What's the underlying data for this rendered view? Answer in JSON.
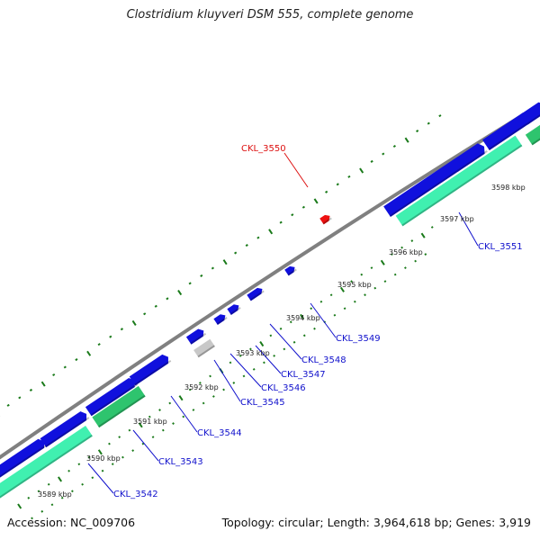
{
  "title": "Clostridium kluyveri DSM 555, complete genome",
  "footer": {
    "accession": "Accession: NC_009706",
    "summary": "Topology: circular; Length: 3,964,618 bp; Genes: 3,919"
  },
  "colors": {
    "backbone": "#808080",
    "forward_cds": "#1010dd",
    "rna": "#2ec46e",
    "special_gene": "#ee1111",
    "pseudo": "#c8c8c8",
    "label_blue": "#1111cc",
    "label_red": "#dd1111",
    "tick_green": "#1a7a1a"
  },
  "scale_labels": [
    "3589 kbp",
    "3590 kbp",
    "3591 kbp",
    "3592 kbp",
    "3593 kbp",
    "3594 kbp",
    "3595 kbp",
    "3596 kbp",
    "3597 kbp",
    "3598 kbp"
  ],
  "gene_labels": [
    "CKL_3542",
    "CKL_3543",
    "CKL_3544",
    "CKL_3545",
    "CKL_3546",
    "CKL_3547",
    "CKL_3548",
    "CKL_3549",
    "CKL_3550",
    "CKL_3551"
  ]
}
